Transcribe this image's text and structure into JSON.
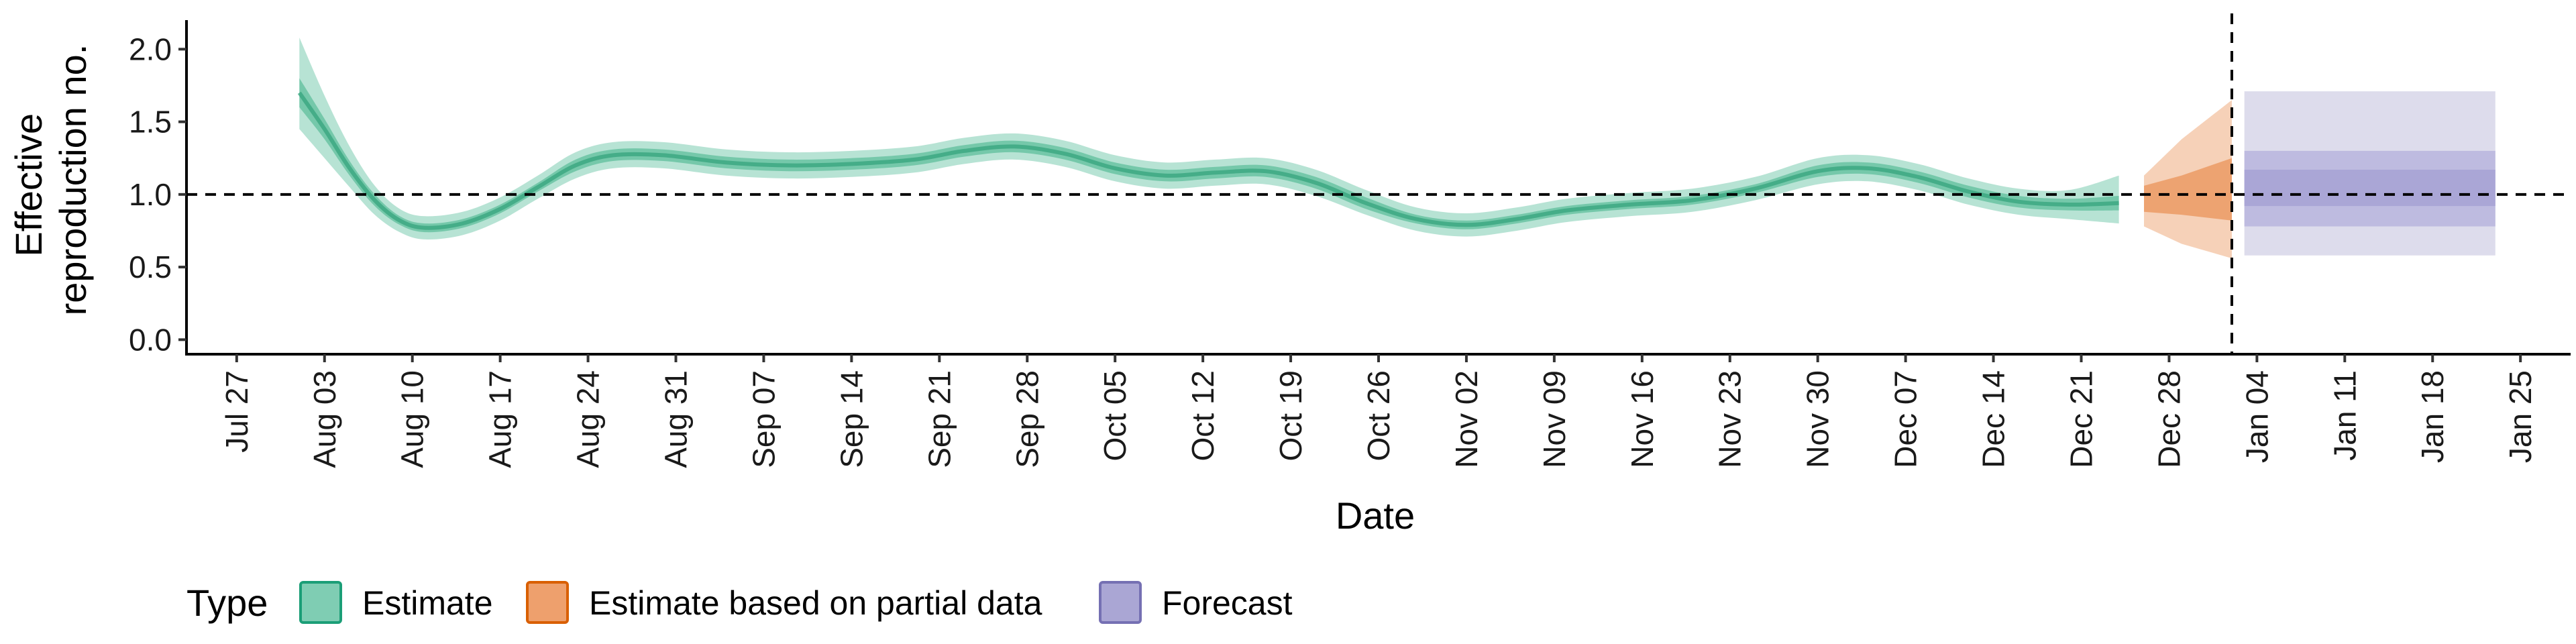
{
  "chart_data": {
    "type": "area",
    "xlabel": "Date",
    "ylabel_lines": [
      "Effective",
      "reproduction no."
    ],
    "x_unit": "date",
    "xlim": [
      "2020-07-23",
      "2021-01-29"
    ],
    "ylim": [
      -0.1,
      2.2
    ],
    "x_ticks": [
      {
        "date": "2020-07-27",
        "label": "Jul 27"
      },
      {
        "date": "2020-08-03",
        "label": "Aug 03"
      },
      {
        "date": "2020-08-10",
        "label": "Aug 10"
      },
      {
        "date": "2020-08-17",
        "label": "Aug 17"
      },
      {
        "date": "2020-08-24",
        "label": "Aug 24"
      },
      {
        "date": "2020-08-31",
        "label": "Aug 31"
      },
      {
        "date": "2020-09-07",
        "label": "Sep 07"
      },
      {
        "date": "2020-09-14",
        "label": "Sep 14"
      },
      {
        "date": "2020-09-21",
        "label": "Sep 21"
      },
      {
        "date": "2020-09-28",
        "label": "Sep 28"
      },
      {
        "date": "2020-10-05",
        "label": "Oct 05"
      },
      {
        "date": "2020-10-12",
        "label": "Oct 12"
      },
      {
        "date": "2020-10-19",
        "label": "Oct 19"
      },
      {
        "date": "2020-10-26",
        "label": "Oct 26"
      },
      {
        "date": "2020-11-02",
        "label": "Nov 02"
      },
      {
        "date": "2020-11-09",
        "label": "Nov 09"
      },
      {
        "date": "2020-11-16",
        "label": "Nov 16"
      },
      {
        "date": "2020-11-23",
        "label": "Nov 23"
      },
      {
        "date": "2020-11-30",
        "label": "Nov 30"
      },
      {
        "date": "2020-12-07",
        "label": "Dec 07"
      },
      {
        "date": "2020-12-14",
        "label": "Dec 14"
      },
      {
        "date": "2020-12-21",
        "label": "Dec 21"
      },
      {
        "date": "2020-12-28",
        "label": "Dec 28"
      },
      {
        "date": "2021-01-04",
        "label": "Jan 04"
      },
      {
        "date": "2021-01-11",
        "label": "Jan 11"
      },
      {
        "date": "2021-01-18",
        "label": "Jan 18"
      },
      {
        "date": "2021-01-25",
        "label": "Jan 25"
      }
    ],
    "y_ticks": [
      {
        "value": 0.0,
        "label": "0.0"
      },
      {
        "value": 0.5,
        "label": "0.5"
      },
      {
        "value": 1.0,
        "label": "1.0"
      },
      {
        "value": 1.5,
        "label": "1.5"
      },
      {
        "value": 2.0,
        "label": "2.0"
      }
    ],
    "hline": 1.0,
    "vline": "2021-01-02",
    "grid": false,
    "legend": {
      "title": "Type",
      "position": "bottom",
      "entries": [
        {
          "label": "Estimate",
          "fill": "#7fcdb3",
          "stroke": "#1b9e77"
        },
        {
          "label": "Estimate based on partial data",
          "fill": "#eea06d",
          "stroke": "#d95f02"
        },
        {
          "label": "Forecast",
          "fill": "#aaa6d4",
          "stroke": "#7570b3"
        }
      ]
    },
    "series": [
      {
        "name": "Estimate",
        "color": "#1b9e77",
        "points": [
          {
            "date": "2020-08-01",
            "median": 1.7,
            "lo50": 1.6,
            "hi50": 1.8,
            "lo90": 1.45,
            "hi90": 2.08
          },
          {
            "date": "2020-08-03",
            "median": 1.45,
            "lo50": 1.38,
            "hi50": 1.52,
            "lo90": 1.25,
            "hi90": 1.68
          },
          {
            "date": "2020-08-05",
            "median": 1.18,
            "lo50": 1.13,
            "hi50": 1.23,
            "lo90": 1.05,
            "hi90": 1.33
          },
          {
            "date": "2020-08-07",
            "median": 0.96,
            "lo50": 0.92,
            "hi50": 1.0,
            "lo90": 0.86,
            "hi90": 1.06
          },
          {
            "date": "2020-08-09",
            "median": 0.82,
            "lo50": 0.79,
            "hi50": 0.85,
            "lo90": 0.74,
            "hi90": 0.9
          },
          {
            "date": "2020-08-11",
            "median": 0.77,
            "lo50": 0.74,
            "hi50": 0.8,
            "lo90": 0.69,
            "hi90": 0.85
          },
          {
            "date": "2020-08-14",
            "median": 0.8,
            "lo50": 0.77,
            "hi50": 0.83,
            "lo90": 0.72,
            "hi90": 0.88
          },
          {
            "date": "2020-08-17",
            "median": 0.9,
            "lo50": 0.87,
            "hi50": 0.93,
            "lo90": 0.82,
            "hi90": 0.98
          },
          {
            "date": "2020-08-20",
            "median": 1.05,
            "lo50": 1.02,
            "hi50": 1.08,
            "lo90": 0.97,
            "hi90": 1.13
          },
          {
            "date": "2020-08-23",
            "median": 1.2,
            "lo50": 1.16,
            "hi50": 1.24,
            "lo90": 1.11,
            "hi90": 1.29
          },
          {
            "date": "2020-08-26",
            "median": 1.27,
            "lo50": 1.23,
            "hi50": 1.31,
            "lo90": 1.18,
            "hi90": 1.36
          },
          {
            "date": "2020-08-30",
            "median": 1.27,
            "lo50": 1.23,
            "hi50": 1.31,
            "lo90": 1.18,
            "hi90": 1.36
          },
          {
            "date": "2020-09-04",
            "median": 1.22,
            "lo50": 1.18,
            "hi50": 1.26,
            "lo90": 1.13,
            "hi90": 1.31
          },
          {
            "date": "2020-09-09",
            "median": 1.2,
            "lo50": 1.16,
            "hi50": 1.24,
            "lo90": 1.11,
            "hi90": 1.29
          },
          {
            "date": "2020-09-14",
            "median": 1.21,
            "lo50": 1.17,
            "hi50": 1.25,
            "lo90": 1.12,
            "hi90": 1.3
          },
          {
            "date": "2020-09-19",
            "median": 1.24,
            "lo50": 1.2,
            "hi50": 1.28,
            "lo90": 1.15,
            "hi90": 1.33
          },
          {
            "date": "2020-09-23",
            "median": 1.3,
            "lo50": 1.26,
            "hi50": 1.34,
            "lo90": 1.21,
            "hi90": 1.39
          },
          {
            "date": "2020-09-27",
            "median": 1.33,
            "lo50": 1.29,
            "hi50": 1.37,
            "lo90": 1.24,
            "hi90": 1.42
          },
          {
            "date": "2020-10-01",
            "median": 1.28,
            "lo50": 1.24,
            "hi50": 1.32,
            "lo90": 1.19,
            "hi90": 1.37
          },
          {
            "date": "2020-10-05",
            "median": 1.18,
            "lo50": 1.14,
            "hi50": 1.22,
            "lo90": 1.09,
            "hi90": 1.27
          },
          {
            "date": "2020-10-09",
            "median": 1.13,
            "lo50": 1.09,
            "hi50": 1.17,
            "lo90": 1.04,
            "hi90": 1.22
          },
          {
            "date": "2020-10-13",
            "median": 1.15,
            "lo50": 1.11,
            "hi50": 1.19,
            "lo90": 1.06,
            "hi90": 1.24
          },
          {
            "date": "2020-10-17",
            "median": 1.16,
            "lo50": 1.12,
            "hi50": 1.2,
            "lo90": 1.07,
            "hi90": 1.25
          },
          {
            "date": "2020-10-21",
            "median": 1.08,
            "lo50": 1.04,
            "hi50": 1.12,
            "lo90": 0.99,
            "hi90": 1.17
          },
          {
            "date": "2020-10-25",
            "median": 0.94,
            "lo50": 0.9,
            "hi50": 0.98,
            "lo90": 0.86,
            "hi90": 1.03
          },
          {
            "date": "2020-10-29",
            "median": 0.83,
            "lo50": 0.8,
            "hi50": 0.86,
            "lo90": 0.75,
            "hi90": 0.91
          },
          {
            "date": "2020-11-02",
            "median": 0.79,
            "lo50": 0.76,
            "hi50": 0.82,
            "lo90": 0.71,
            "hi90": 0.87
          },
          {
            "date": "2020-11-06",
            "median": 0.83,
            "lo50": 0.8,
            "hi50": 0.86,
            "lo90": 0.75,
            "hi90": 0.91
          },
          {
            "date": "2020-11-10",
            "median": 0.89,
            "lo50": 0.86,
            "hi50": 0.92,
            "lo90": 0.81,
            "hi90": 0.97
          },
          {
            "date": "2020-11-15",
            "median": 0.93,
            "lo50": 0.9,
            "hi50": 0.96,
            "lo90": 0.85,
            "hi90": 1.01
          },
          {
            "date": "2020-11-20",
            "median": 0.96,
            "lo50": 0.93,
            "hi50": 0.99,
            "lo90": 0.88,
            "hi90": 1.04
          },
          {
            "date": "2020-11-25",
            "median": 1.04,
            "lo50": 1.01,
            "hi50": 1.07,
            "lo90": 0.96,
            "hi90": 1.12
          },
          {
            "date": "2020-11-30",
            "median": 1.16,
            "lo50": 1.12,
            "hi50": 1.2,
            "lo90": 1.07,
            "hi90": 1.25
          },
          {
            "date": "2020-12-04",
            "median": 1.18,
            "lo50": 1.14,
            "hi50": 1.22,
            "lo90": 1.09,
            "hi90": 1.27
          },
          {
            "date": "2020-12-08",
            "median": 1.12,
            "lo50": 1.08,
            "hi50": 1.16,
            "lo90": 1.03,
            "hi90": 1.21
          },
          {
            "date": "2020-12-12",
            "median": 1.02,
            "lo50": 0.98,
            "hi50": 1.06,
            "lo90": 0.93,
            "hi90": 1.11
          },
          {
            "date": "2020-12-16",
            "median": 0.95,
            "lo50": 0.91,
            "hi50": 0.99,
            "lo90": 0.86,
            "hi90": 1.04
          },
          {
            "date": "2020-12-20",
            "median": 0.93,
            "lo50": 0.89,
            "hi50": 0.97,
            "lo90": 0.83,
            "hi90": 1.03
          },
          {
            "date": "2020-12-24",
            "median": 0.94,
            "lo50": 0.89,
            "hi50": 0.99,
            "lo90": 0.8,
            "hi90": 1.13
          }
        ]
      },
      {
        "name": "Estimate based on partial data",
        "color": "#d95f02",
        "points": [
          {
            "date": "2020-12-26",
            "median": 0.97,
            "lo50": 0.88,
            "hi50": 1.06,
            "lo90": 0.78,
            "hi90": 1.13
          },
          {
            "date": "2020-12-29",
            "median": 0.99,
            "lo50": 0.86,
            "hi50": 1.13,
            "lo90": 0.66,
            "hi90": 1.38
          },
          {
            "date": "2021-01-02",
            "median": 1.02,
            "lo50": 0.82,
            "hi50": 1.25,
            "lo90": 0.56,
            "hi90": 1.65
          }
        ]
      },
      {
        "name": "Forecast",
        "color": "#7570b3",
        "points": [
          {
            "date": "2021-01-03",
            "median": 1.0,
            "lo20": 0.92,
            "hi20": 1.17,
            "lo50": 0.78,
            "hi50": 1.3,
            "lo90": 0.58,
            "hi90": 1.71
          },
          {
            "date": "2021-01-23",
            "median": 1.0,
            "lo20": 0.92,
            "hi20": 1.17,
            "lo50": 0.78,
            "hi50": 1.3,
            "lo90": 0.58,
            "hi90": 1.71
          }
        ]
      }
    ]
  }
}
